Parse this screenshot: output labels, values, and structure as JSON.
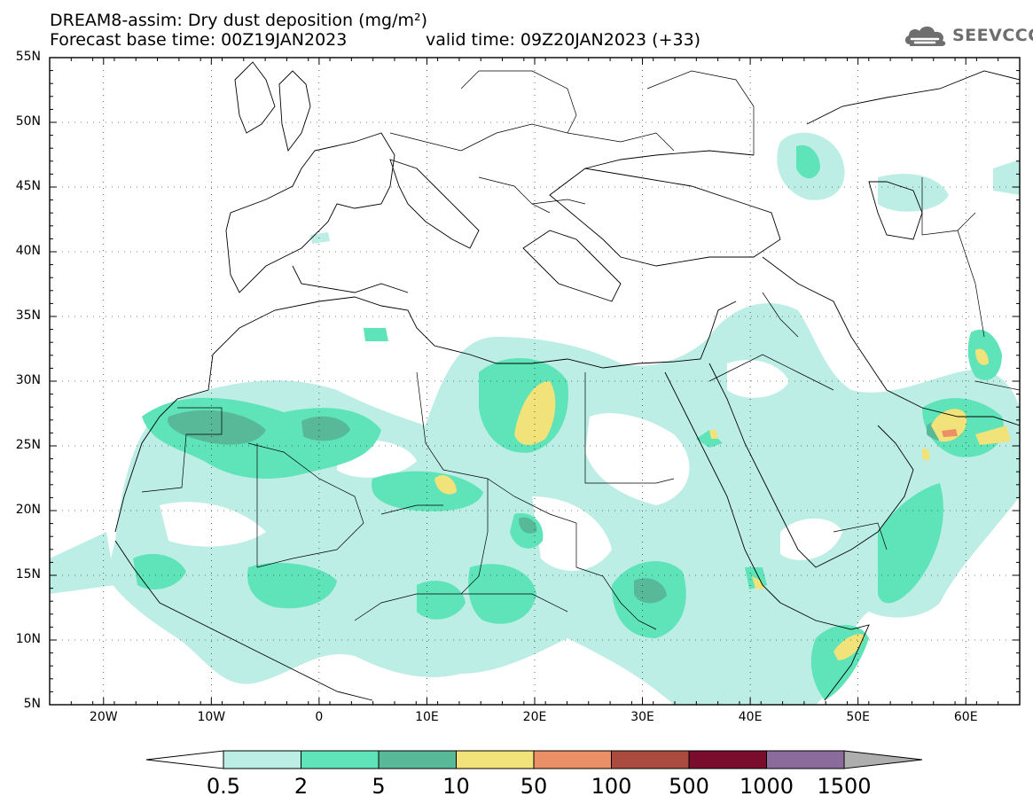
{
  "title": {
    "line1": "DREAM8-assim: Dry dust deposition (mg/m²)",
    "line2_base": "Forecast base time: 00Z19JAN2023",
    "line2_valid": "valid time: 09Z20JAN2023 (+33)"
  },
  "logo": {
    "text": "SEEVCCC",
    "icon": "cloud-icon"
  },
  "map": {
    "lat_labels": [
      "55N",
      "50N",
      "45N",
      "40N",
      "35N",
      "30N",
      "25N",
      "20N",
      "15N",
      "10N",
      "5N"
    ],
    "lon_labels": [
      "20W",
      "10W",
      "0",
      "10E",
      "20E",
      "30E",
      "40E",
      "50E",
      "60E"
    ],
    "lon_range": [
      -25,
      65
    ],
    "lat_range": [
      5,
      55
    ]
  },
  "colorbar": {
    "labels": [
      "0.5",
      "2",
      "5",
      "10",
      "50",
      "100",
      "500",
      "1000",
      "1500"
    ],
    "colors": [
      "#bdeee6",
      "#5fe3b8",
      "#57b997",
      "#f2e27a",
      "#eb8f66",
      "#ab4b40",
      "#7a0d2e",
      "#8b6b9c",
      "#aeaeae"
    ]
  }
}
